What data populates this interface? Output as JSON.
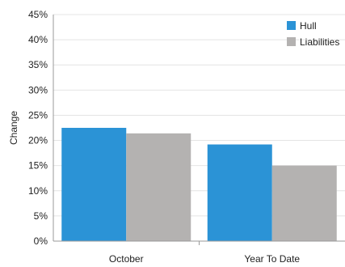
{
  "chart_data": {
    "type": "bar",
    "categories": [
      "October",
      "Year To Date"
    ],
    "series": [
      {
        "name": "Hull",
        "values": [
          22.5,
          19.2
        ],
        "color": "#2b93d6"
      },
      {
        "name": "Liabilities",
        "values": [
          21.4,
          15.0
        ],
        "color": "#b4b2b1"
      }
    ],
    "ylabel": "Change",
    "ylim": [
      0,
      45
    ],
    "yticks": [
      "0%",
      "5%",
      "10%",
      "15%",
      "20%",
      "25%",
      "30%",
      "35%",
      "40%",
      "45%"
    ],
    "grid": true,
    "legend": "top-right"
  }
}
